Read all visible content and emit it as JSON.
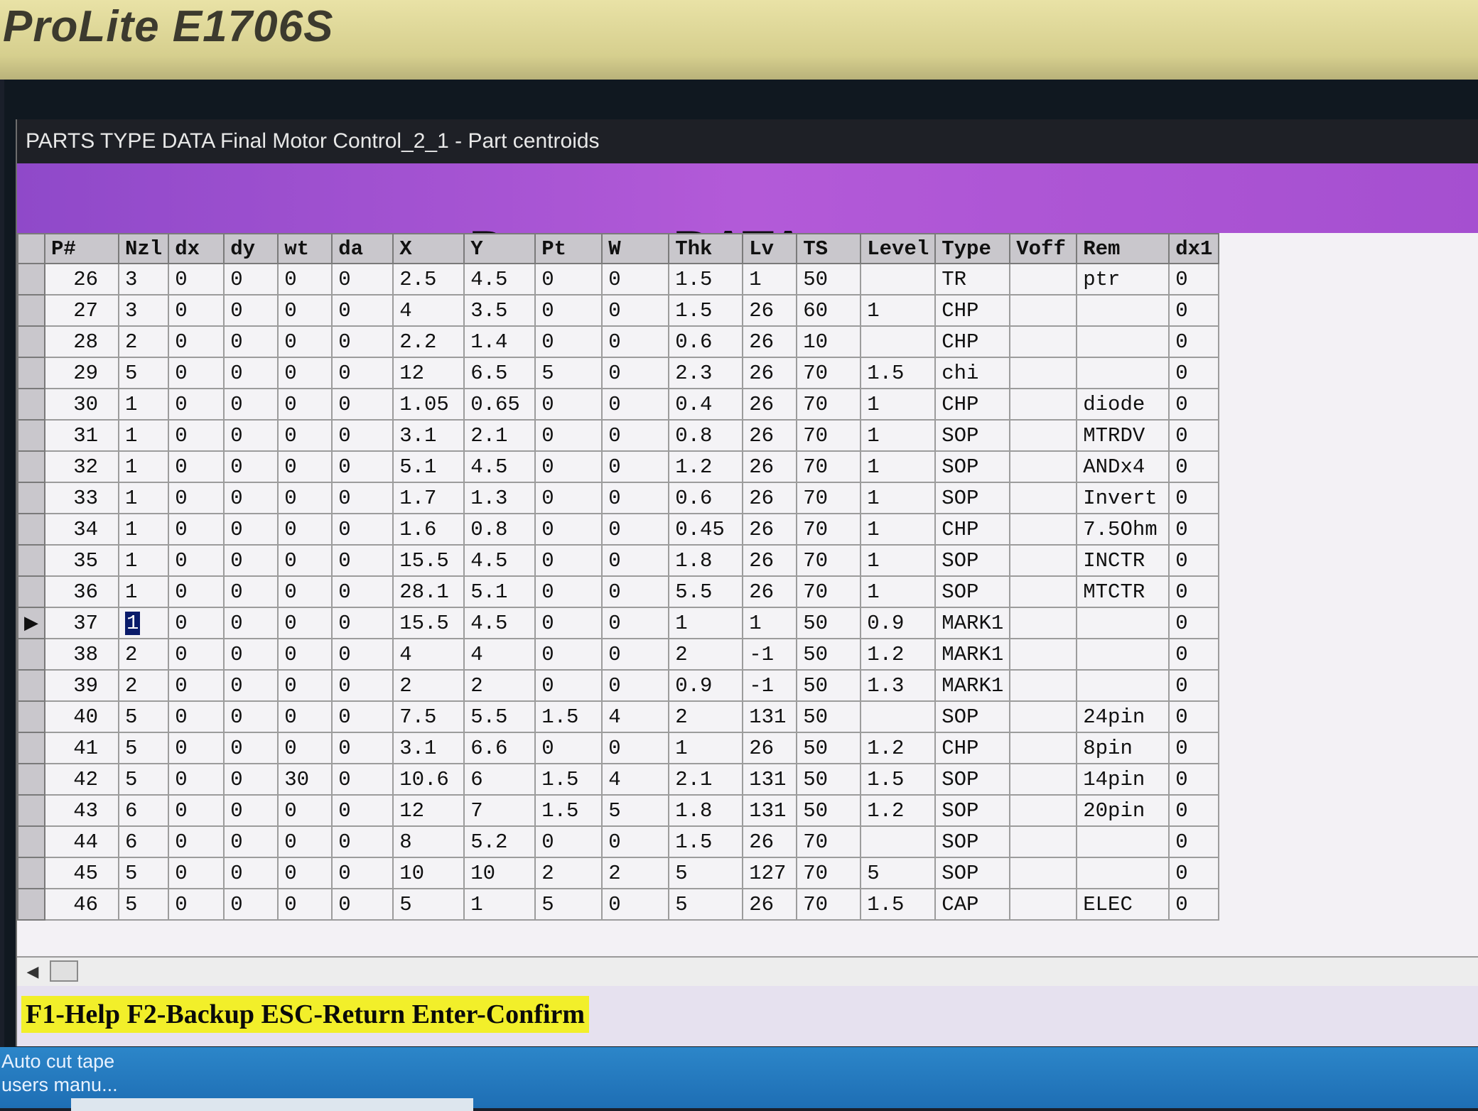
{
  "monitor": {
    "brand": "ProLite E1706S"
  },
  "window": {
    "title": "PARTS TYPE DATA Final Motor Control_2_1 - Part centroids"
  },
  "banner": {
    "title": "Part type DATA"
  },
  "table": {
    "columns": [
      "P#",
      "Nzl",
      "dx",
      "dy",
      "wt",
      "da",
      "X",
      "Y",
      "Pt",
      "W",
      "Thk",
      "Lv",
      "TS",
      "Level",
      "Type",
      "Voff",
      "Rem",
      "dx1"
    ],
    "current_row_index": 11,
    "rows": [
      [
        "26",
        "3",
        "0",
        "0",
        "0",
        "0",
        "2.5",
        "4.5",
        "0",
        "0",
        "1.5",
        "1",
        "50",
        "",
        "TR",
        "",
        "ptr",
        "0"
      ],
      [
        "27",
        "3",
        "0",
        "0",
        "0",
        "0",
        "4",
        "3.5",
        "0",
        "0",
        "1.5",
        "26",
        "60",
        "1",
        "CHP",
        "",
        "",
        "0"
      ],
      [
        "28",
        "2",
        "0",
        "0",
        "0",
        "0",
        "2.2",
        "1.4",
        "0",
        "0",
        "0.6",
        "26",
        "10",
        "",
        "CHP",
        "",
        "",
        "0"
      ],
      [
        "29",
        "5",
        "0",
        "0",
        "0",
        "0",
        "12",
        "6.5",
        "5",
        "0",
        "2.3",
        "26",
        "70",
        "1.5",
        "chi",
        "",
        "",
        "0"
      ],
      [
        "30",
        "1",
        "0",
        "0",
        "0",
        "0",
        "1.05",
        "0.65",
        "0",
        "0",
        "0.4",
        "26",
        "70",
        "1",
        "CHP",
        "",
        "diode",
        "0"
      ],
      [
        "31",
        "1",
        "0",
        "0",
        "0",
        "0",
        "3.1",
        "2.1",
        "0",
        "0",
        "0.8",
        "26",
        "70",
        "1",
        "SOP",
        "",
        "MTRDV",
        "0"
      ],
      [
        "32",
        "1",
        "0",
        "0",
        "0",
        "0",
        "5.1",
        "4.5",
        "0",
        "0",
        "1.2",
        "26",
        "70",
        "1",
        "SOP",
        "",
        "ANDx4",
        "0"
      ],
      [
        "33",
        "1",
        "0",
        "0",
        "0",
        "0",
        "1.7",
        "1.3",
        "0",
        "0",
        "0.6",
        "26",
        "70",
        "1",
        "SOP",
        "",
        "Invert",
        "0"
      ],
      [
        "34",
        "1",
        "0",
        "0",
        "0",
        "0",
        "1.6",
        "0.8",
        "0",
        "0",
        "0.45",
        "26",
        "70",
        "1",
        "CHP",
        "",
        "7.5Ohm",
        "0"
      ],
      [
        "35",
        "1",
        "0",
        "0",
        "0",
        "0",
        "15.5",
        "4.5",
        "0",
        "0",
        "1.8",
        "26",
        "70",
        "1",
        "SOP",
        "",
        "INCTR",
        "0"
      ],
      [
        "36",
        "1",
        "0",
        "0",
        "0",
        "0",
        "28.1",
        "5.1",
        "0",
        "0",
        "5.5",
        "26",
        "70",
        "1",
        "SOP",
        "",
        "MTCTR",
        "0"
      ],
      [
        "37",
        "1",
        "0",
        "0",
        "0",
        "0",
        "15.5",
        "4.5",
        "0",
        "0",
        "1",
        "1",
        "50",
        "0.9",
        "MARK1",
        "",
        "",
        "0"
      ],
      [
        "38",
        "2",
        "0",
        "0",
        "0",
        "0",
        "4",
        "4",
        "0",
        "0",
        "2",
        "-1",
        "50",
        "1.2",
        "MARK1",
        "",
        "",
        "0"
      ],
      [
        "39",
        "2",
        "0",
        "0",
        "0",
        "0",
        "2",
        "2",
        "0",
        "0",
        "0.9",
        "-1",
        "50",
        "1.3",
        "MARK1",
        "",
        "",
        "0"
      ],
      [
        "40",
        "5",
        "0",
        "0",
        "0",
        "0",
        "7.5",
        "5.5",
        "1.5",
        "4",
        "2",
        "131",
        "50",
        "",
        "SOP",
        "",
        "24pin",
        "0"
      ],
      [
        "41",
        "5",
        "0",
        "0",
        "0",
        "0",
        "3.1",
        "6.6",
        "0",
        "0",
        "1",
        "26",
        "50",
        "1.2",
        "CHP",
        "",
        "8pin",
        "0"
      ],
      [
        "42",
        "5",
        "0",
        "0",
        "30",
        "0",
        "10.6",
        "6",
        "1.5",
        "4",
        "2.1",
        "131",
        "50",
        "1.5",
        "SOP",
        "",
        "14pin",
        "0"
      ],
      [
        "43",
        "6",
        "0",
        "0",
        "0",
        "0",
        "12",
        "7",
        "1.5",
        "5",
        "1.8",
        "131",
        "50",
        "1.2",
        "SOP",
        "",
        "20pin",
        "0"
      ],
      [
        "44",
        "6",
        "0",
        "0",
        "0",
        "0",
        "8",
        "5.2",
        "0",
        "0",
        "1.5",
        "26",
        "70",
        "",
        "SOP",
        "",
        "",
        "0"
      ],
      [
        "45",
        "5",
        "0",
        "0",
        "0",
        "0",
        "10",
        "10",
        "2",
        "2",
        "5",
        "127",
        "70",
        "5",
        "SOP",
        "",
        "",
        "0"
      ],
      [
        "46",
        "5",
        "0",
        "0",
        "0",
        "0",
        "5",
        "1",
        "5",
        "0",
        "5",
        "26",
        "70",
        "1.5",
        "CAP",
        "",
        "ELEC",
        "0"
      ]
    ]
  },
  "status": {
    "hint": "F1-Help F2-Backup ESC-Return Enter-Confirm"
  },
  "taskbar": {
    "line1": "Auto cut  tape",
    "line2": "users manu..."
  },
  "icons": {
    "row_pointer": "row-pointer-icon",
    "scroll_left": "scroll-left-icon"
  },
  "colors": {
    "banner": "#a54fd0",
    "hint_bg": "#f2ef2a",
    "selection": "#0a1b6a",
    "taskbar": "#2c86c9"
  }
}
